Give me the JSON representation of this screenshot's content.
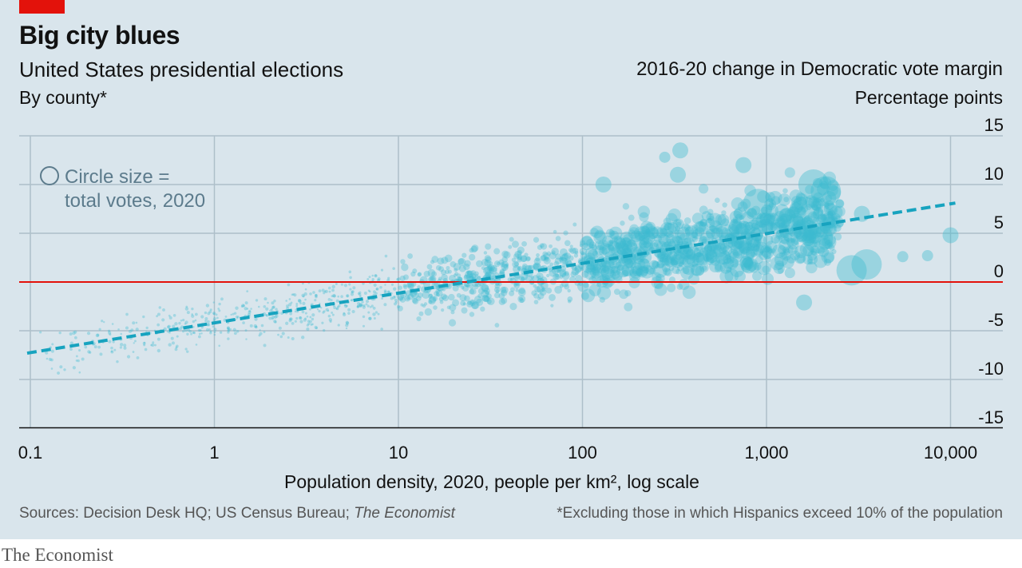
{
  "header": {
    "title": "Big city blues",
    "subtitle": "United States presidential elections",
    "subsubtitle": "By county*",
    "y_title": "2016-20 change in Democratic vote margin",
    "y_unit": "Percentage points"
  },
  "footer": {
    "source_prefix": "Sources: Decision Desk HQ; US Census Bureau; ",
    "source_italic": "The Economist",
    "note": "*Excluding those in which Hispanics exceed 10% of the population",
    "brand": "The Economist"
  },
  "chart_data": {
    "type": "scatter",
    "xlabel_bold": "Population density,",
    "xlabel_rest": " 2020, people per km², log scale",
    "x_scale": "log",
    "xlim": [
      0.09,
      12000
    ],
    "ylim": [
      -15,
      15
    ],
    "x_ticks": [
      0.1,
      1,
      10,
      100,
      1000,
      10000
    ],
    "x_tick_labels": [
      "0.1",
      "1",
      "10",
      "100",
      "1,000",
      "10,000"
    ],
    "y_ticks": [
      15,
      10,
      5,
      0,
      -5,
      -10,
      -15
    ],
    "y_tick_labels": [
      "15",
      "10",
      "5",
      "0",
      "-5",
      "-10",
      "-15"
    ],
    "grid": true,
    "legend": {
      "text_line1": "Circle size =",
      "text_line2": "total votes, 2020",
      "placement": "top-left"
    },
    "colors": {
      "points": "#3bbbd0",
      "trend": "#17a3bf",
      "zero_line": "#e3120b",
      "grid": "#aebfc9"
    },
    "trend_line": {
      "x": [
        0.1,
        10000
      ],
      "y": [
        -7.3,
        8.1
      ]
    },
    "highlighted_points": [
      {
        "x": 340,
        "y": 13.5,
        "votes": "medium"
      },
      {
        "x": 280,
        "y": 12.8,
        "votes": "small"
      },
      {
        "x": 330,
        "y": 11.0,
        "votes": "medium"
      },
      {
        "x": 750,
        "y": 12.0,
        "votes": "medium"
      },
      {
        "x": 1800,
        "y": 10.0,
        "votes": "large"
      },
      {
        "x": 2100,
        "y": 9.3,
        "votes": "large"
      },
      {
        "x": 130,
        "y": 10.0,
        "votes": "medium"
      },
      {
        "x": 900,
        "y": 8.0,
        "votes": "large"
      },
      {
        "x": 1600,
        "y": 7.2,
        "votes": "large"
      },
      {
        "x": 3300,
        "y": 7.0,
        "votes": "medium"
      },
      {
        "x": 10000,
        "y": 4.8,
        "votes": "medium"
      },
      {
        "x": 1900,
        "y": 4.5,
        "votes": "large"
      },
      {
        "x": 3500,
        "y": 1.8,
        "votes": "large"
      },
      {
        "x": 2900,
        "y": 1.2,
        "votes": "large"
      },
      {
        "x": 1600,
        "y": -2.1,
        "votes": "medium"
      },
      {
        "x": 1300,
        "y": 6.8,
        "votes": "medium"
      },
      {
        "x": 800,
        "y": 1.7,
        "votes": "medium"
      },
      {
        "x": 7500,
        "y": 2.7,
        "votes": "small"
      },
      {
        "x": 5500,
        "y": 2.6,
        "votes": "small"
      }
    ]
  }
}
